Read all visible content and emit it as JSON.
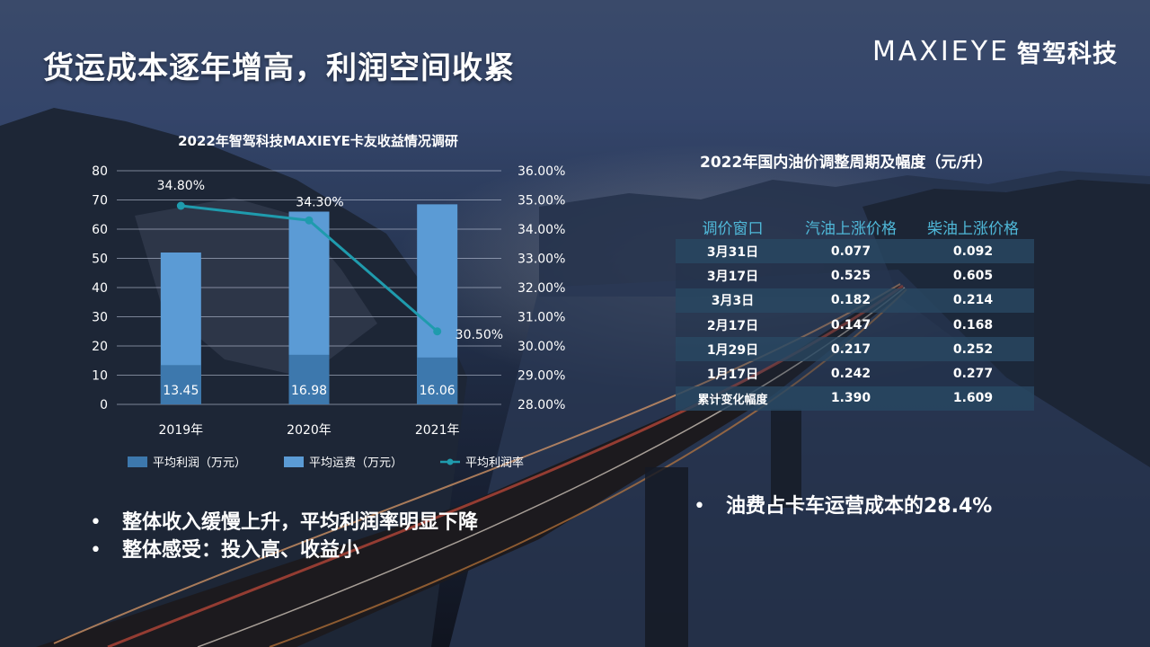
{
  "title": "货运成本逐年增高，利润空间收紧",
  "logo": {
    "word": "MAXIEYE",
    "cn": "智驾科技"
  },
  "chart_data": {
    "type": "bar",
    "title": "2022年智驾科技MAXIEYE卡友收益情况调研",
    "categories": [
      "2019年",
      "2020年",
      "2021年"
    ],
    "series": [
      {
        "name": "平均利润（万元）",
        "type": "bar",
        "values": [
          13.45,
          16.98,
          16.06
        ],
        "color": "#3d78ad"
      },
      {
        "name": "平均运费（万元）",
        "type": "bar",
        "values": [
          52,
          66,
          68.5
        ],
        "color": "#5b9bd5"
      },
      {
        "name": "平均利润率",
        "type": "line",
        "axis": "right",
        "values": [
          34.8,
          34.3,
          30.5
        ],
        "labels": [
          "34.80%",
          "34.30%",
          "30.50%"
        ],
        "color": "#1f9bad"
      }
    ],
    "bar_labels": [
      "13.45",
      "16.98",
      "16.06"
    ],
    "ylim": [
      0,
      80
    ],
    "y_ticks": [
      "0",
      "10",
      "20",
      "30",
      "40",
      "50",
      "60",
      "70",
      "80"
    ],
    "y2lim": [
      28,
      36
    ],
    "y2_ticks": [
      "28.00%",
      "29.00%",
      "30.00%",
      "31.00%",
      "32.00%",
      "33.00%",
      "34.00%",
      "35.00%",
      "36.00%"
    ],
    "grid": true,
    "legend": "bottom"
  },
  "bullets_left": [
    "整体收入缓慢上升，平均利润率明显下降",
    "整体感受：投入高、收益小"
  ],
  "bullets_right": [
    "油费占卡车运营成本的28.4%"
  ],
  "oil_table": {
    "title": "2022年国内油价调整周期及幅度（元/升）",
    "headers": [
      "调价窗口",
      "汽油上涨价格",
      "柴油上涨价格"
    ],
    "rows": [
      [
        "3月31日",
        "0.077",
        "0.092"
      ],
      [
        "3月17日",
        "0.525",
        "0.605"
      ],
      [
        "3月3日",
        "0.182",
        "0.214"
      ],
      [
        "2月17日",
        "0.147",
        "0.168"
      ],
      [
        "1月29日",
        "0.217",
        "0.252"
      ],
      [
        "1月17日",
        "0.242",
        "0.277"
      ],
      [
        "累计变化幅度",
        "1.390",
        "1.609"
      ]
    ]
  }
}
